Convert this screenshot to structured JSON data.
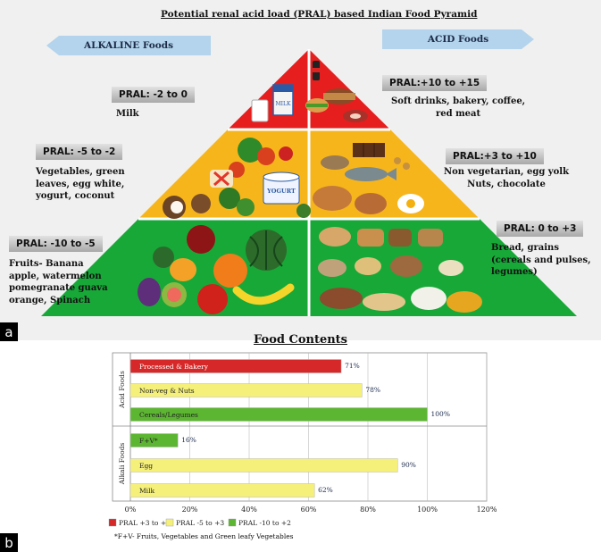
{
  "panel_a": {
    "title": "Potential renal acid load (PRAL) based Indian Food Pyramid",
    "alkaline_arrow": "ALKALINE Foods",
    "acid_arrow": "ACID Foods",
    "label": "a",
    "alkaline": [
      {
        "pral": "PRAL: -2 to 0",
        "foods": [
          "Milk"
        ]
      },
      {
        "pral": "PRAL: -5 to -2",
        "foods": [
          "Vegetables, green",
          "leaves, egg white,",
          "yogurt, coconut"
        ]
      },
      {
        "pral": "PRAL: -10 to -5",
        "foods": [
          "Fruits- Banana",
          "apple, watermelon",
          "pomegranate guava",
          "orange, Spinach"
        ]
      }
    ],
    "acid": [
      {
        "pral": "PRAL:+10 to +15",
        "foods": [
          "Soft drinks, bakery, coffee,",
          "red meat"
        ]
      },
      {
        "pral": "PRAL:+3 to +10",
        "foods": [
          "Non vegetarian, egg yolk",
          "Nuts, chocolate"
        ]
      },
      {
        "pral": "PRAL: 0 to +3",
        "foods": [
          "Bread, grains",
          "(cereals and pulses,",
          "legumes)"
        ]
      }
    ],
    "tier_colors": {
      "top": "#e61e1e",
      "middle": "#f7b51c",
      "bottom": "#18a838"
    },
    "food_labels": {
      "milk_carton": "MILK",
      "yogurt": "YOGURT"
    }
  },
  "panel_b": {
    "label": "b",
    "footnote": "*F+V- Fruits, Vegetables and Green leafy Vegetables",
    "chart_data": {
      "type": "bar",
      "orientation": "horizontal",
      "title": "Food Contents",
      "groups": [
        {
          "name": "Acid Foods",
          "categories": [
            "Processed & Bakery",
            "Non-veg & Nuts",
            "Cereals/Legumes"
          ]
        },
        {
          "name": "Alkali Foods",
          "categories": [
            "F+V*",
            "Egg",
            "Milk"
          ]
        }
      ],
      "categories": [
        "Processed & Bakery",
        "Non-veg & Nuts",
        "Cereals/Legumes",
        "F+V*",
        "Egg",
        "Milk"
      ],
      "values": [
        71,
        78,
        100,
        16,
        90,
        62
      ],
      "value_labels": [
        "71%",
        "78%",
        "100%",
        "16%",
        "90%",
        "62%"
      ],
      "bar_series": [
        0,
        1,
        2,
        2,
        1,
        1
      ],
      "xlim": [
        0,
        120
      ],
      "xticks": [
        "0%",
        "20%",
        "40%",
        "60%",
        "80%",
        "100%",
        "120%"
      ],
      "grid": "vertical",
      "legend_placement": "bottom",
      "series": [
        {
          "name": "PRAL +3 to +6",
          "color": "#d62828"
        },
        {
          "name": "PRAL -5 to +3",
          "color": "#f5f07a"
        },
        {
          "name": "PRAL -10 to +2",
          "color": "#5cb631"
        }
      ]
    }
  }
}
